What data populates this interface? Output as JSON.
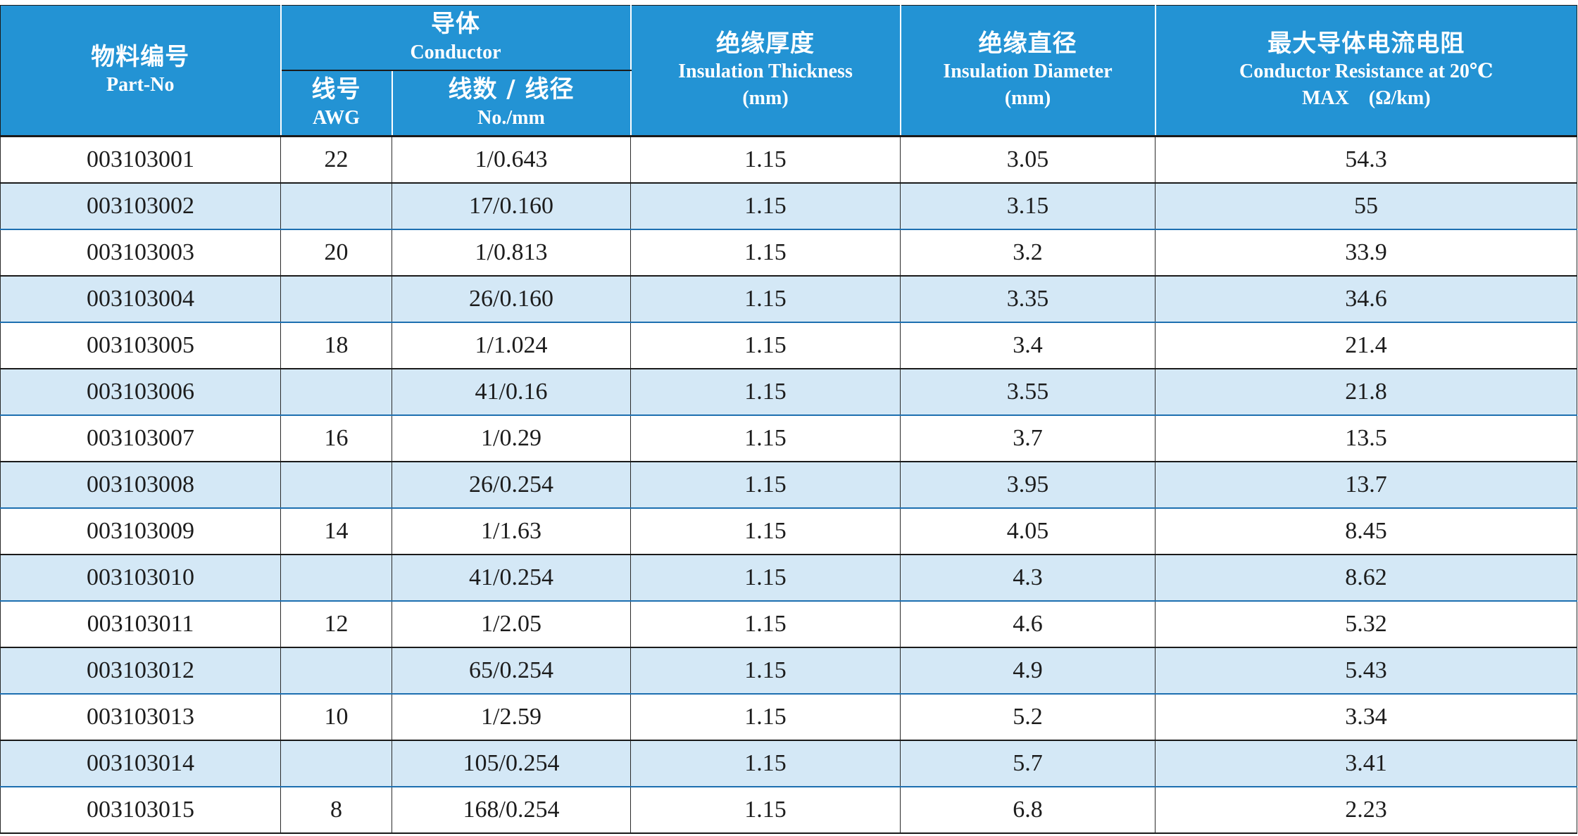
{
  "header": {
    "part_no": {
      "zh": "物料编号",
      "en": "Part-No"
    },
    "conductor": {
      "zh": "导体",
      "en": "Conductor",
      "awg": {
        "zh": "线号",
        "en": "AWG"
      },
      "strands": {
        "zh": "线数 / 线径",
        "en": "No./mm"
      }
    },
    "insulation_thickness": {
      "zh": "绝缘厚度",
      "en": "Insulation Thickness",
      "unit": "(mm)"
    },
    "insulation_diameter": {
      "zh": "绝缘直径",
      "en": "Insulation Diameter",
      "unit": "(mm)"
    },
    "resistance": {
      "zh": "最大导体电流电阻",
      "en": "Conductor Resistance at 20℃",
      "unit": "MAX　(Ω/km)"
    }
  },
  "colors": {
    "header_bg": "#2393d4",
    "stripe_bg": "#d4e8f6"
  },
  "rows": [
    {
      "part_no": "003103001",
      "awg": "22",
      "strands": "1/0.643",
      "thickness": "1.15",
      "diameter": "3.05",
      "resistance": "54.3"
    },
    {
      "part_no": "003103002",
      "awg": "",
      "strands": "17/0.160",
      "thickness": "1.15",
      "diameter": "3.15",
      "resistance": "55"
    },
    {
      "part_no": "003103003",
      "awg": "20",
      "strands": "1/0.813",
      "thickness": "1.15",
      "diameter": "3.2",
      "resistance": "33.9"
    },
    {
      "part_no": "003103004",
      "awg": "",
      "strands": "26/0.160",
      "thickness": "1.15",
      "diameter": "3.35",
      "resistance": "34.6"
    },
    {
      "part_no": "003103005",
      "awg": "18",
      "strands": "1/1.024",
      "thickness": "1.15",
      "diameter": "3.4",
      "resistance": "21.4"
    },
    {
      "part_no": "003103006",
      "awg": "",
      "strands": "41/0.16",
      "thickness": "1.15",
      "diameter": "3.55",
      "resistance": "21.8"
    },
    {
      "part_no": "003103007",
      "awg": "16",
      "strands": "1/0.29",
      "thickness": "1.15",
      "diameter": "3.7",
      "resistance": "13.5"
    },
    {
      "part_no": "003103008",
      "awg": "",
      "strands": "26/0.254",
      "thickness": "1.15",
      "diameter": "3.95",
      "resistance": "13.7"
    },
    {
      "part_no": "003103009",
      "awg": "14",
      "strands": "1/1.63",
      "thickness": "1.15",
      "diameter": "4.05",
      "resistance": "8.45"
    },
    {
      "part_no": "003103010",
      "awg": "",
      "strands": "41/0.254",
      "thickness": "1.15",
      "diameter": "4.3",
      "resistance": "8.62"
    },
    {
      "part_no": "003103011",
      "awg": "12",
      "strands": "1/2.05",
      "thickness": "1.15",
      "diameter": "4.6",
      "resistance": "5.32"
    },
    {
      "part_no": "003103012",
      "awg": "",
      "strands": "65/0.254",
      "thickness": "1.15",
      "diameter": "4.9",
      "resistance": "5.43"
    },
    {
      "part_no": "003103013",
      "awg": "10",
      "strands": "1/2.59",
      "thickness": "1.15",
      "diameter": "5.2",
      "resistance": "3.34"
    },
    {
      "part_no": "003103014",
      "awg": "",
      "strands": "105/0.254",
      "thickness": "1.15",
      "diameter": "5.7",
      "resistance": "3.41"
    },
    {
      "part_no": "003103015",
      "awg": "8",
      "strands": "168/0.254",
      "thickness": "1.15",
      "diameter": "6.8",
      "resistance": "2.23"
    }
  ]
}
